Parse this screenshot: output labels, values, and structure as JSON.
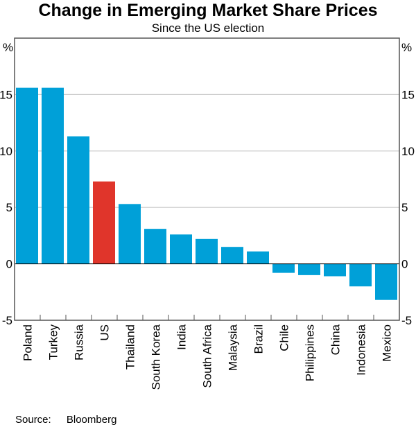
{
  "chart_data": {
    "type": "bar",
    "title": "Change in Emerging Market Share Prices",
    "subtitle": "Since the US election",
    "ylabel": "%",
    "ylim": [
      -5,
      20
    ],
    "yticks": [
      -5,
      0,
      5,
      10,
      15
    ],
    "grid": true,
    "categories": [
      "Poland",
      "Turkey",
      "Russia",
      "US",
      "Thailand",
      "South Korea",
      "India",
      "South Africa",
      "Malaysia",
      "Brazil",
      "Chile",
      "Philippines",
      "China",
      "Indonesia",
      "Mexico"
    ],
    "values": [
      15.6,
      15.6,
      11.3,
      7.3,
      5.3,
      3.1,
      2.6,
      2.2,
      1.5,
      1.1,
      -0.8,
      -1.0,
      -1.1,
      -2.0,
      -3.2
    ],
    "highlight": "US",
    "colors": {
      "bar": "#00a0d8",
      "highlight": "#e0352b",
      "grid": "#c8c8c8"
    }
  },
  "footer": {
    "source_label": "Source:",
    "source_value": "Bloomberg"
  }
}
